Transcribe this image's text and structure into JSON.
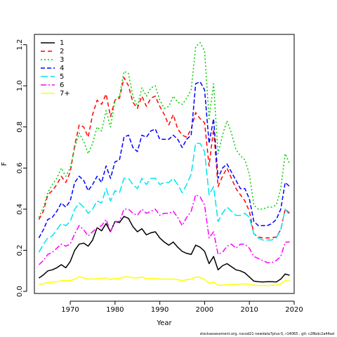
{
  "chart_data": {
    "type": "line",
    "xlabel": "Year",
    "ylabel": "F",
    "xlim": [
      1962,
      2020
    ],
    "ylim": [
      -0.01,
      1.25
    ],
    "x_ticks": [
      1970,
      1980,
      1990,
      2000,
      2010,
      2020
    ],
    "y_ticks": [
      0.0,
      0.2,
      0.4,
      0.6,
      0.8,
      1.0,
      1.2
    ],
    "legend_position": "top-left",
    "grid": false,
    "x": [
      1963,
      1964,
      1965,
      1966,
      1967,
      1968,
      1969,
      1970,
      1971,
      1972,
      1973,
      1974,
      1975,
      1976,
      1977,
      1978,
      1979,
      1980,
      1981,
      1982,
      1983,
      1984,
      1985,
      1986,
      1987,
      1988,
      1989,
      1990,
      1991,
      1992,
      1993,
      1994,
      1995,
      1996,
      1997,
      1998,
      1999,
      2000,
      2001,
      2002,
      2003,
      2004,
      2005,
      2006,
      2007,
      2008,
      2009,
      2010,
      2011,
      2012,
      2013,
      2014,
      2015,
      2016,
      2017,
      2018,
      2019
    ],
    "series": [
      {
        "name": "1",
        "color": "#000000",
        "dash": "solid",
        "values": [
          0.065,
          0.08,
          0.1,
          0.105,
          0.115,
          0.13,
          0.115,
          0.145,
          0.2,
          0.23,
          0.235,
          0.22,
          0.25,
          0.31,
          0.295,
          0.33,
          0.29,
          0.34,
          0.335,
          0.365,
          0.355,
          0.315,
          0.29,
          0.305,
          0.275,
          0.285,
          0.29,
          0.26,
          0.24,
          0.225,
          0.24,
          0.215,
          0.195,
          0.185,
          0.18,
          0.225,
          0.215,
          0.195,
          0.135,
          0.17,
          0.105,
          0.125,
          0.135,
          0.12,
          0.105,
          0.1,
          0.09,
          0.07,
          0.05,
          0.047,
          0.046,
          0.047,
          0.047,
          0.046,
          0.06,
          0.085,
          0.078
        ]
      },
      {
        "name": "2",
        "color": "#ff0000",
        "dash": "6,4",
        "values": [
          0.35,
          0.39,
          0.47,
          0.49,
          0.52,
          0.56,
          0.53,
          0.58,
          0.71,
          0.81,
          0.8,
          0.75,
          0.86,
          0.93,
          0.91,
          0.96,
          0.85,
          0.93,
          0.94,
          1.04,
          1.0,
          0.92,
          0.89,
          0.95,
          0.9,
          0.94,
          0.95,
          0.9,
          0.86,
          0.81,
          0.86,
          0.79,
          0.76,
          0.75,
          0.79,
          0.87,
          0.84,
          0.82,
          0.61,
          0.79,
          0.51,
          0.56,
          0.6,
          0.55,
          0.5,
          0.47,
          0.44,
          0.39,
          0.28,
          0.265,
          0.26,
          0.26,
          0.26,
          0.265,
          0.3,
          0.4,
          0.38
        ]
      },
      {
        "name": "3",
        "color": "#00cd00",
        "dash": "2,3",
        "values": [
          0.36,
          0.41,
          0.48,
          0.52,
          0.55,
          0.6,
          0.56,
          0.6,
          0.7,
          0.77,
          0.73,
          0.67,
          0.72,
          0.8,
          0.78,
          0.88,
          0.8,
          0.93,
          0.95,
          1.07,
          1.06,
          0.95,
          0.9,
          0.99,
          0.95,
          0.99,
          1.0,
          0.93,
          0.89,
          0.9,
          0.95,
          0.92,
          0.91,
          0.94,
          0.98,
          1.19,
          1.21,
          1.17,
          0.84,
          1.01,
          0.67,
          0.76,
          0.83,
          0.77,
          0.69,
          0.66,
          0.64,
          0.57,
          0.42,
          0.4,
          0.4,
          0.41,
          0.41,
          0.42,
          0.5,
          0.67,
          0.62
        ]
      },
      {
        "name": "4",
        "color": "#0000ff",
        "dash": "6,3",
        "values": [
          0.26,
          0.3,
          0.35,
          0.36,
          0.39,
          0.43,
          0.41,
          0.44,
          0.53,
          0.56,
          0.54,
          0.49,
          0.52,
          0.56,
          0.53,
          0.61,
          0.55,
          0.63,
          0.64,
          0.75,
          0.76,
          0.7,
          0.68,
          0.76,
          0.75,
          0.78,
          0.79,
          0.74,
          0.74,
          0.74,
          0.76,
          0.74,
          0.7,
          0.74,
          0.76,
          1.01,
          1.02,
          0.98,
          0.72,
          0.84,
          0.55,
          0.6,
          0.62,
          0.58,
          0.54,
          0.5,
          0.5,
          0.45,
          0.34,
          0.32,
          0.32,
          0.32,
          0.33,
          0.35,
          0.4,
          0.53,
          0.51
        ]
      },
      {
        "name": "5",
        "color": "#00e5ee",
        "dash": "10,4",
        "values": [
          0.19,
          0.23,
          0.26,
          0.27,
          0.3,
          0.33,
          0.32,
          0.34,
          0.4,
          0.43,
          0.41,
          0.38,
          0.4,
          0.44,
          0.43,
          0.5,
          0.44,
          0.49,
          0.48,
          0.55,
          0.55,
          0.52,
          0.5,
          0.55,
          0.52,
          0.55,
          0.55,
          0.52,
          0.53,
          0.53,
          0.55,
          0.52,
          0.48,
          0.52,
          0.57,
          0.72,
          0.72,
          0.68,
          0.47,
          0.51,
          0.34,
          0.38,
          0.41,
          0.39,
          0.37,
          0.37,
          0.38,
          0.36,
          0.28,
          0.26,
          0.25,
          0.25,
          0.25,
          0.26,
          0.3,
          0.4,
          0.37
        ]
      },
      {
        "name": "6",
        "color": "#ff00ff",
        "dash": "8,3,2,3",
        "values": [
          0.13,
          0.15,
          0.18,
          0.19,
          0.21,
          0.23,
          0.22,
          0.23,
          0.28,
          0.32,
          0.3,
          0.27,
          0.29,
          0.31,
          0.32,
          0.35,
          0.29,
          0.34,
          0.34,
          0.4,
          0.4,
          0.38,
          0.37,
          0.4,
          0.38,
          0.39,
          0.4,
          0.37,
          0.38,
          0.38,
          0.39,
          0.36,
          0.32,
          0.36,
          0.39,
          0.47,
          0.46,
          0.42,
          0.26,
          0.29,
          0.18,
          0.19,
          0.22,
          0.23,
          0.21,
          0.23,
          0.23,
          0.21,
          0.17,
          0.16,
          0.15,
          0.14,
          0.14,
          0.15,
          0.17,
          0.24,
          0.24
        ]
      },
      {
        "name": "7+",
        "color": "#ffff00",
        "dash": "solid",
        "values": [
          0.033,
          0.037,
          0.043,
          0.045,
          0.047,
          0.052,
          0.052,
          0.052,
          0.06,
          0.072,
          0.066,
          0.06,
          0.06,
          0.062,
          0.064,
          0.065,
          0.058,
          0.062,
          0.063,
          0.07,
          0.071,
          0.066,
          0.066,
          0.07,
          0.063,
          0.063,
          0.063,
          0.06,
          0.06,
          0.06,
          0.06,
          0.057,
          0.053,
          0.057,
          0.06,
          0.07,
          0.068,
          0.058,
          0.04,
          0.045,
          0.03,
          0.03,
          0.033,
          0.034,
          0.034,
          0.036,
          0.036,
          0.034,
          0.03,
          0.029,
          0.029,
          0.029,
          0.03,
          0.03,
          0.036,
          0.053,
          0.055
        ]
      }
    ]
  },
  "footer": "stockassessment.org, nscod21 newdata7plus-5, r14065 , git: c28bdc2a44ad"
}
